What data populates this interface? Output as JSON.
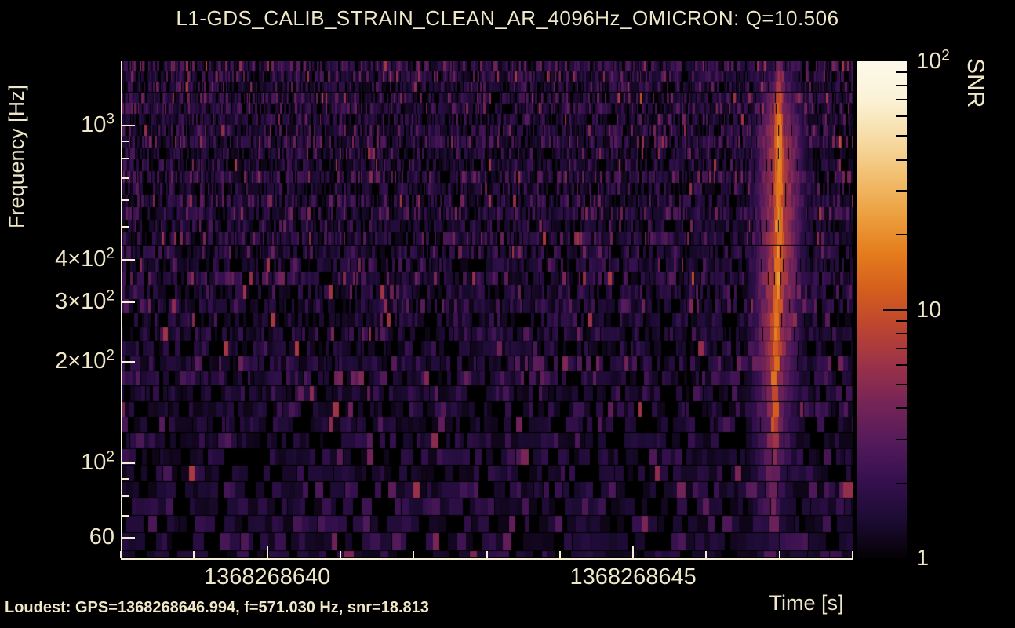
{
  "title": "L1-GDS_CALIB_STRAIN_CLEAN_AR_4096Hz_OMICRON: Q=10.506",
  "footer": {
    "loudest": "Loudest: GPS=1368268646.994, f=571.030 Hz, snr=18.813"
  },
  "colors": {
    "background": "#000000",
    "text": "#f0e7c8",
    "axis": "#f5eed6",
    "colorbar_tick": "#000000",
    "event_peak": "#e57d1e",
    "noise_purple": "#35104e"
  },
  "chart_data": {
    "type": "heatmap",
    "title": "L1-GDS_CALIB_STRAIN_CLEAN_AR_4096Hz_OMICRON: Q=10.506",
    "xlabel": "Time [s]",
    "ylabel": "Frequency [Hz]",
    "colorbar_label": "SNR",
    "q": 10.506,
    "x_axis": {
      "scale": "linear",
      "range_gps": [
        1368268638,
        1368268648
      ],
      "major_ticks": [
        {
          "value": 1368268640,
          "label": "1368268640"
        },
        {
          "value": 1368268645,
          "label": "1368268645"
        }
      ],
      "minor_tick_step_s": 1
    },
    "y_axis": {
      "scale": "log",
      "range_hz": [
        52.3,
        1552
      ],
      "major_ticks": [
        {
          "value": 1000,
          "base": "10",
          "exp": "3"
        },
        {
          "value": 400,
          "base": "4×10",
          "exp": "2"
        },
        {
          "value": 300,
          "base": "3×10",
          "exp": "2"
        },
        {
          "value": 200,
          "base": "2×10",
          "exp": "2"
        },
        {
          "value": 100,
          "base": "10",
          "exp": "2"
        },
        {
          "value": 60,
          "base": "60",
          "exp": ""
        }
      ],
      "minor_ticks": [
        900,
        800,
        700,
        600,
        500,
        90,
        80,
        70
      ]
    },
    "colorbar": {
      "scale": "log",
      "range_snr": [
        1,
        100
      ],
      "major_ticks": [
        {
          "value": 100,
          "base": "10",
          "exp": "2"
        },
        {
          "value": 10,
          "base": "10",
          "exp": ""
        },
        {
          "value": 1,
          "base": "1",
          "exp": ""
        }
      ],
      "minor_ticks": [
        90,
        80,
        70,
        60,
        50,
        40,
        30,
        20,
        9,
        8,
        7,
        6,
        5,
        4,
        3,
        2
      ]
    },
    "loudest_event": {
      "gps": 1368268646.994,
      "frequency_hz": 571.03,
      "snr": 18.813
    },
    "colormap_stops": [
      "#050104",
      "#1c0b33",
      "#35104e",
      "#531a5a",
      "#742457",
      "#993149",
      "#bb4431",
      "#d45d1d",
      "#e57d1e",
      "#eca040",
      "#f2bf70",
      "#f6dca6",
      "#fbf2d6",
      "#fdf9ea"
    ]
  }
}
